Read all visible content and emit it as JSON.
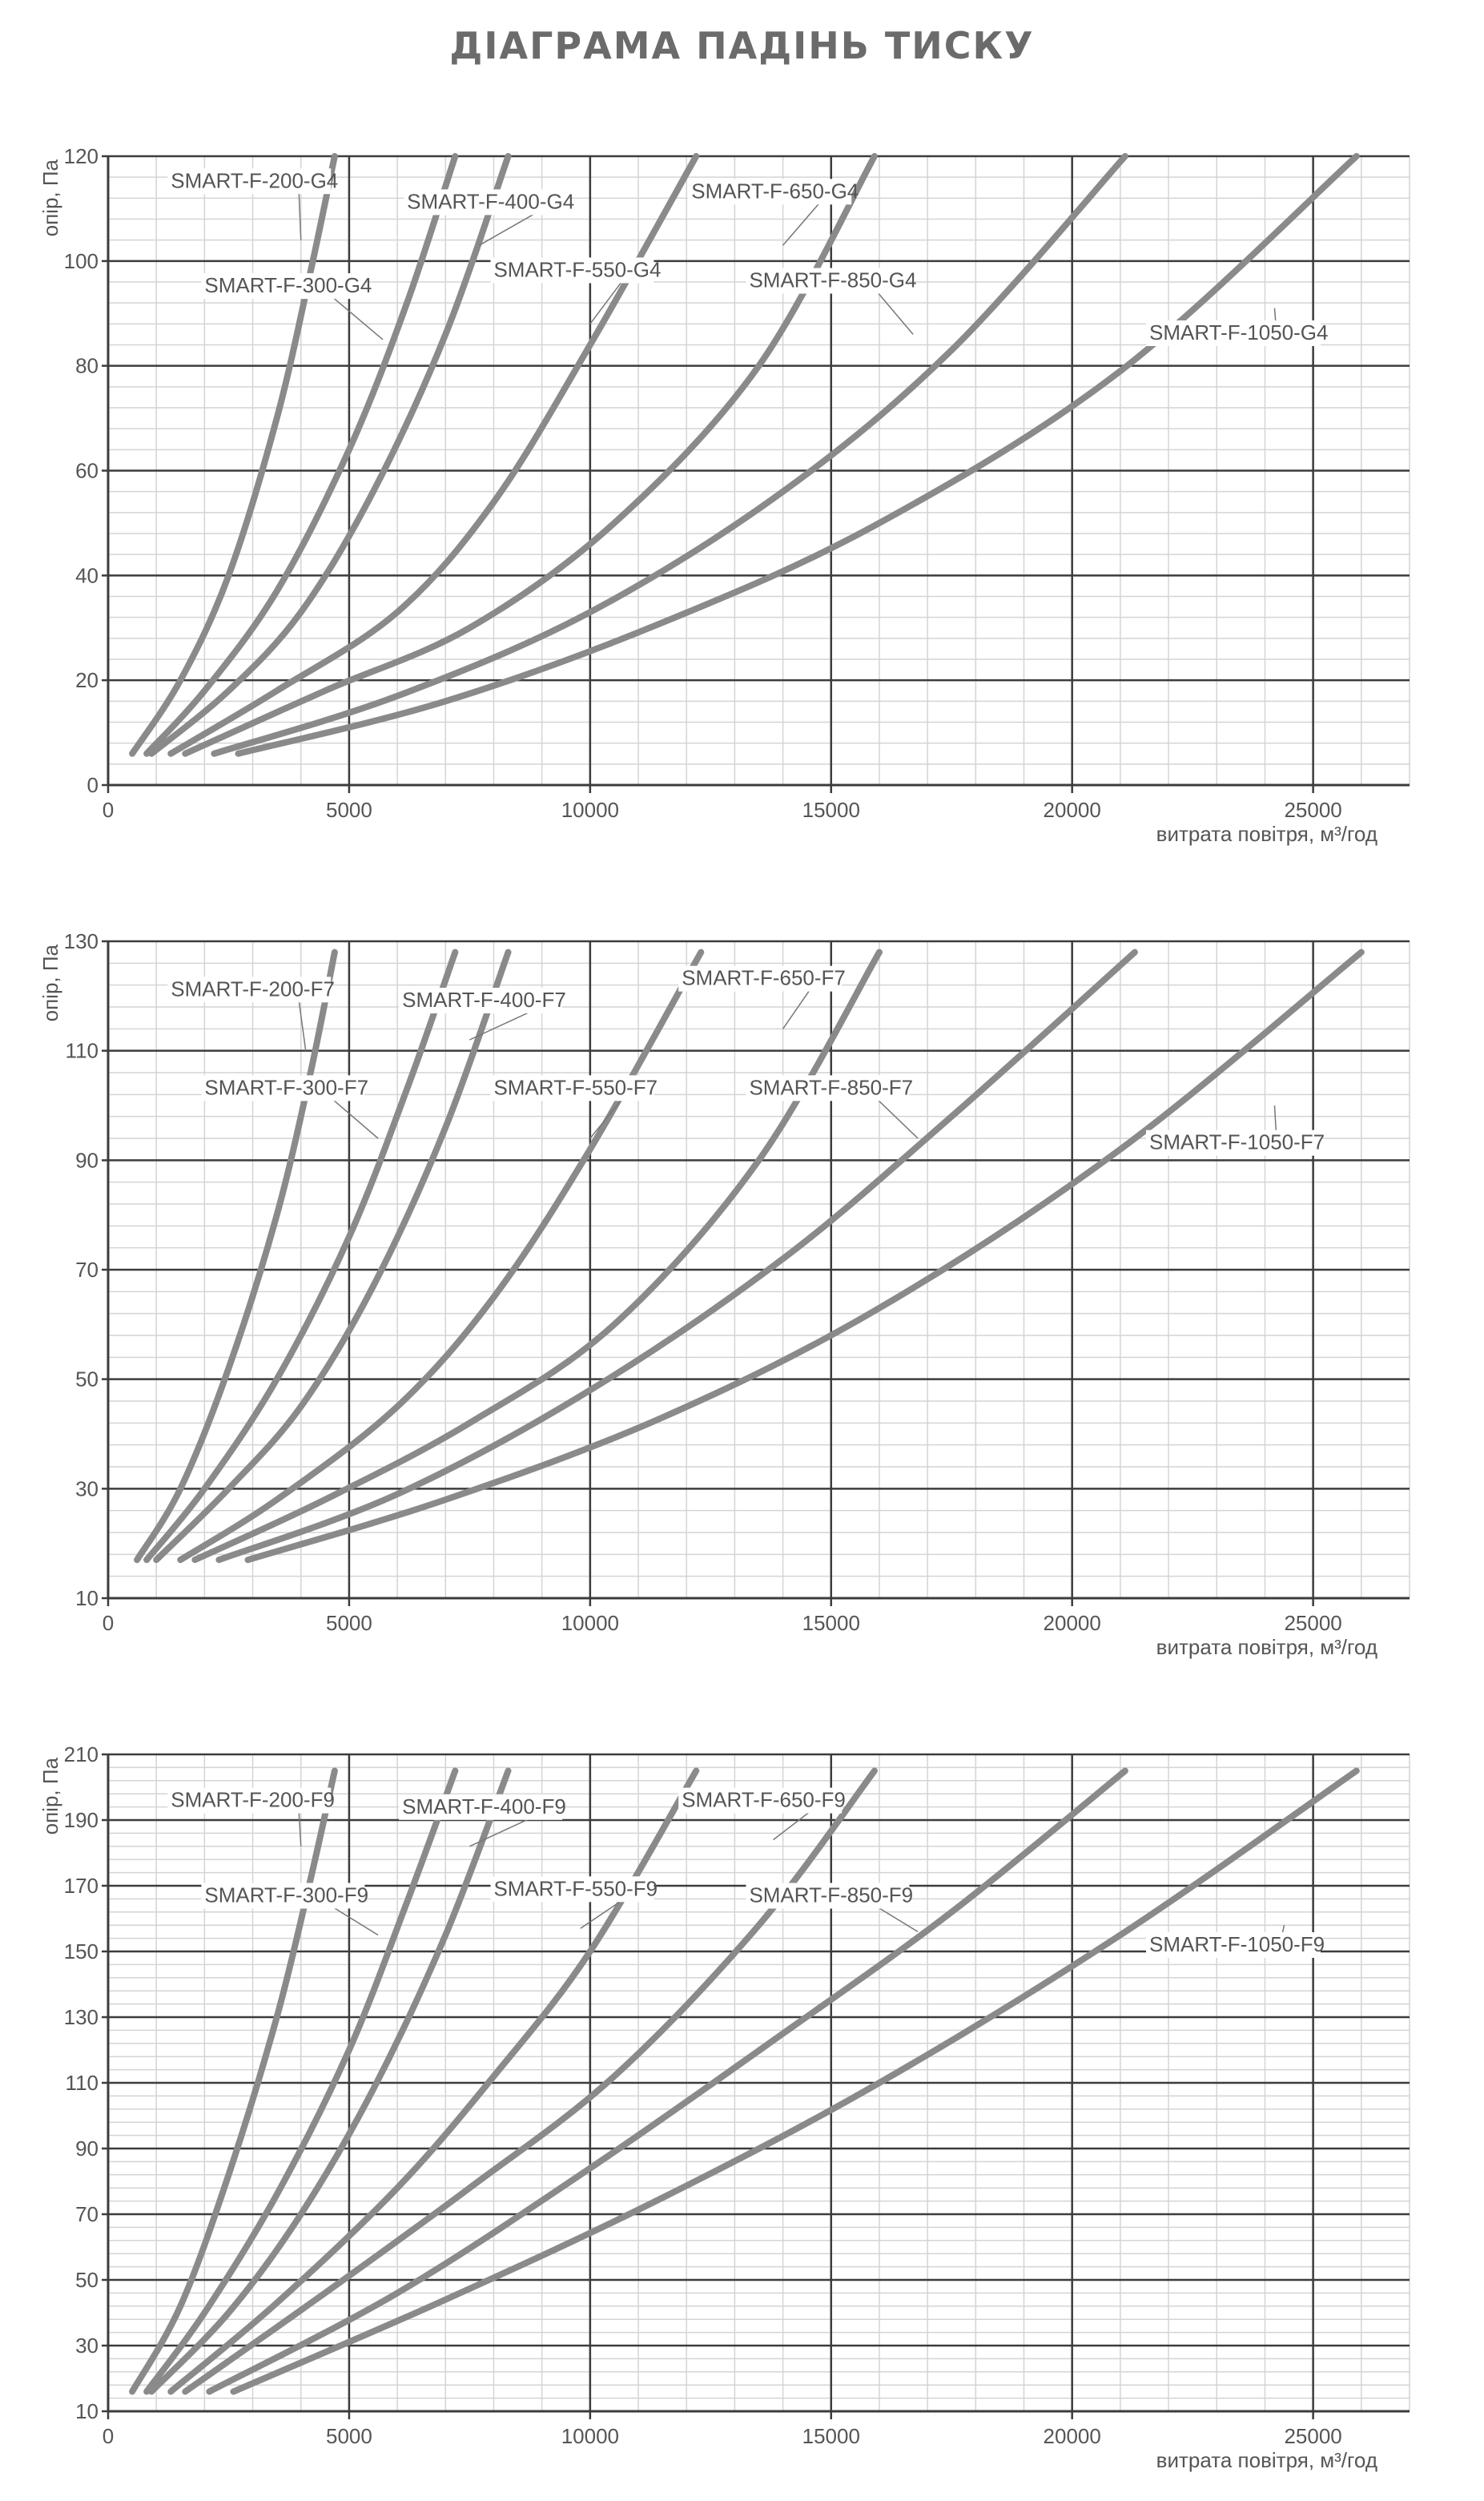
{
  "page_title": "ДІАГРАМА ПАДІНЬ ТИСКУ",
  "colors": {
    "curve": "#8a8a8a",
    "grid_major": "#3c3c3c",
    "grid_minor": "#d4d4d4",
    "text": "#555555"
  },
  "chart_data": [
    {
      "type": "line",
      "title": "",
      "xlabel": "витрата повітря, м³/год",
      "ylabel": "опір, Па",
      "xlim": [
        0,
        27000
      ],
      "ylim": [
        0,
        120
      ],
      "xticks": [
        0,
        5000,
        10000,
        15000,
        20000,
        25000
      ],
      "yticks": [
        0,
        20,
        40,
        60,
        80,
        100,
        120
      ],
      "grid": true,
      "series": [
        {
          "name": "SMART-F-200-G4",
          "x": [
            500,
            1500,
            2500,
            3500,
            4200,
            4700
          ],
          "y": [
            6,
            20,
            40,
            70,
            98,
            120
          ]
        },
        {
          "name": "SMART-F-300-G4",
          "x": [
            800,
            2000,
            3500,
            5000,
            6200,
            7200
          ],
          "y": [
            6,
            18,
            37,
            64,
            92,
            120
          ]
        },
        {
          "name": "SMART-F-400-G4",
          "x": [
            900,
            2500,
            4000,
            5500,
            7000,
            8300
          ],
          "y": [
            6,
            18,
            33,
            56,
            86,
            120
          ]
        },
        {
          "name": "SMART-F-550-G4",
          "x": [
            1300,
            3500,
            6000,
            8000,
            10000,
            12200
          ],
          "y": [
            6,
            18,
            33,
            54,
            84,
            120
          ]
        },
        {
          "name": "SMART-F-650-G4",
          "x": [
            1600,
            4500,
            7500,
            10500,
            13500,
            15900
          ],
          "y": [
            6,
            18,
            30,
            50,
            80,
            120
          ]
        },
        {
          "name": "SMART-F-850-G4",
          "x": [
            2200,
            6000,
            10000,
            14000,
            17500,
            21100
          ],
          "y": [
            6,
            17,
            33,
            56,
            83,
            120
          ]
        },
        {
          "name": "SMART-F-1050-G4",
          "x": [
            2700,
            7000,
            11500,
            16000,
            21000,
            25900
          ],
          "y": [
            6,
            16,
            31,
            50,
            79,
            120
          ]
        }
      ]
    },
    {
      "type": "line",
      "title": "",
      "xlabel": "витрата повітря, м³/год",
      "ylabel": "опір, Па",
      "xlim": [
        0,
        27000
      ],
      "ylim": [
        10,
        130
      ],
      "xticks": [
        0,
        5000,
        10000,
        15000,
        20000,
        25000
      ],
      "yticks": [
        10,
        30,
        50,
        70,
        90,
        110,
        130
      ],
      "grid": true,
      "series": [
        {
          "name": "SMART-F-200-F7",
          "x": [
            600,
            1500,
            2500,
            3500,
            4200,
            4700
          ],
          "y": [
            17,
            30,
            52,
            80,
            106,
            128
          ]
        },
        {
          "name": "SMART-F-300-F7",
          "x": [
            800,
            2000,
            3500,
            5000,
            6200,
            7200
          ],
          "y": [
            17,
            30,
            50,
            76,
            103,
            128
          ]
        },
        {
          "name": "SMART-F-400-F7",
          "x": [
            1000,
            2500,
            4000,
            5500,
            7000,
            8300
          ],
          "y": [
            17,
            30,
            45,
            67,
            96,
            128
          ]
        },
        {
          "name": "SMART-F-550-F7",
          "x": [
            1500,
            3500,
            6000,
            8000,
            10000,
            12300
          ],
          "y": [
            17,
            28,
            45,
            65,
            92,
            128
          ]
        },
        {
          "name": "SMART-F-650-F7",
          "x": [
            1800,
            4500,
            7500,
            10500,
            13500,
            16000
          ],
          "y": [
            17,
            28,
            42,
            60,
            90,
            128
          ]
        },
        {
          "name": "SMART-F-850-F7",
          "x": [
            2300,
            6000,
            10000,
            14000,
            17500,
            21300
          ],
          "y": [
            17,
            29,
            48,
            72,
            98,
            128
          ]
        },
        {
          "name": "SMART-F-1050-F7",
          "x": [
            2900,
            7000,
            11500,
            16000,
            21000,
            26000
          ],
          "y": [
            17,
            28,
            43,
            63,
            92,
            128
          ]
        }
      ]
    },
    {
      "type": "line",
      "title": "",
      "xlabel": "витрата повітря, м³/год",
      "ylabel": "опір, Па",
      "xlim": [
        0,
        27000
      ],
      "ylim": [
        10,
        210
      ],
      "xticks": [
        0,
        5000,
        10000,
        15000,
        20000,
        25000
      ],
      "yticks": [
        10,
        30,
        50,
        70,
        90,
        110,
        130,
        150,
        170,
        190,
        210
      ],
      "grid": true,
      "series": [
        {
          "name": "SMART-F-200-F9",
          "x": [
            500,
            1500,
            2500,
            3500,
            4200,
            4700
          ],
          "y": [
            16,
            42,
            82,
            130,
            172,
            205
          ]
        },
        {
          "name": "SMART-F-300-F9",
          "x": [
            800,
            2000,
            3500,
            5000,
            6200,
            7200
          ],
          "y": [
            16,
            40,
            76,
            120,
            165,
            205
          ]
        },
        {
          "name": "SMART-F-400-F9",
          "x": [
            900,
            2500,
            4000,
            5500,
            7000,
            8300
          ],
          "y": [
            16,
            40,
            70,
            108,
            155,
            205
          ]
        },
        {
          "name": "SMART-F-550-F9",
          "x": [
            1300,
            3500,
            6000,
            8000,
            10000,
            12200
          ],
          "y": [
            16,
            43,
            78,
            112,
            150,
            205
          ]
        },
        {
          "name": "SMART-F-650-F9",
          "x": [
            1600,
            4500,
            7500,
            10500,
            13500,
            15900
          ],
          "y": [
            16,
            46,
            78,
            112,
            158,
            205
          ]
        },
        {
          "name": "SMART-F-850-F9",
          "x": [
            2100,
            6000,
            10000,
            14000,
            17500,
            21100
          ],
          "y": [
            16,
            46,
            84,
            125,
            162,
            205
          ]
        },
        {
          "name": "SMART-F-1050-F9",
          "x": [
            2600,
            7000,
            11500,
            16000,
            21000,
            25900
          ],
          "y": [
            16,
            44,
            75,
            110,
            155,
            205
          ]
        }
      ]
    }
  ]
}
